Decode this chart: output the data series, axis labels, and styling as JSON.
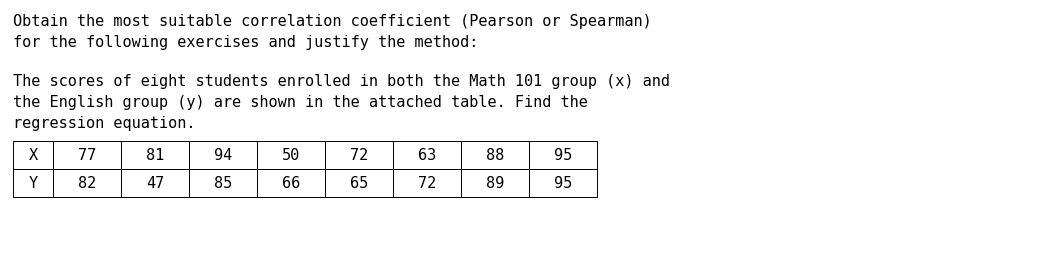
{
  "line1": "Obtain the most suitable correlation coefficient (Pearson or Spearman)",
  "line2": "for the following exercises and justify the method:",
  "line3": "The scores of eight students enrolled in both the Math 101 group (x) and",
  "line4": "the English group (y) are shown in the attached table. Find the",
  "line5": "regression equation.",
  "table_headers": [
    "X",
    "77",
    "81",
    "94",
    "50",
    "72",
    "63",
    "88",
    "95"
  ],
  "table_row2": [
    "Y",
    "82",
    "47",
    "85",
    "66",
    "65",
    "72",
    "89",
    "95"
  ],
  "bg_color": "#ffffff",
  "text_color": "#000000",
  "font_size": 11.0,
  "font_family": "monospace",
  "fig_width": 10.62,
  "fig_height": 2.62,
  "dpi": 100
}
